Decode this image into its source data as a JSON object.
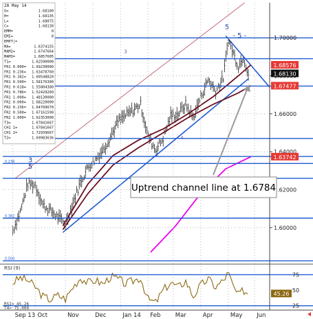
{
  "chart_data": {
    "type": "line",
    "header_date": "28 May 14",
    "ylim": [
      1.5815,
      1.7185
    ],
    "y_ticks": [
      1.6,
      1.62,
      1.64,
      1.66,
      1.68,
      1.7
    ],
    "y_tick_labels": [
      "1.60000",
      "1.62000",
      "1.64000",
      "1.66000",
      "1.68000",
      "1.70000"
    ],
    "x_month_labels": [
      "Sep 13",
      "Oct",
      "Nov",
      "Dec",
      "Jan 14",
      "Feb",
      "Mar",
      "Apr",
      "May",
      "Jun"
    ],
    "x_month_positions": [
      0,
      18,
      42,
      64,
      86,
      108,
      128,
      150,
      172,
      193
    ],
    "x_range": [
      -8,
      205
    ],
    "price_tags": [
      {
        "value": 1.6858,
        "label": "1.68576",
        "bg": "#e53935"
      },
      {
        "value": 1.6813,
        "label": "1.68130",
        "bg": "#111111"
      },
      {
        "value": 1.6748,
        "label": "1.67477",
        "bg": "#e53935"
      },
      {
        "value": 1.6374,
        "label": "1.63742",
        "bg": "#e53935"
      }
    ],
    "info_panel": [
      [
        "O=",
        "1.68100"
      ],
      [
        "H=",
        "1.68135"
      ],
      [
        "L=",
        "1.68075"
      ],
      [
        "C=",
        "1.68130"
      ],
      [
        "EMM=",
        "0"
      ],
      [
        "EMI=",
        "0"
      ],
      [
        "EMPT|=",
        ""
      ],
      [
        "MA=",
        "1.6374155"
      ],
      [
        "MAM2=",
        "1.6747664"
      ],
      [
        "MAM3=",
        "1.6857605"
      ],
      [
        "T1=",
        "1.62590000"
      ],
      [
        "FR1 0.000=",
        "1.69230000"
      ],
      [
        "FR1 0.236=",
        "1.63478760"
      ],
      [
        "FR1 0.382=",
        "1.60548820"
      ],
      [
        "FR1 0.500=",
        "1.58176300"
      ],
      [
        "FR1 0.618=",
        "1.55804380"
      ],
      [
        "FR1 0.786=",
        "1.52429260"
      ],
      [
        "FR1 1.000=",
        "1.48130000"
      ],
      [
        "FR2 0.000=",
        "1.68220000"
      ],
      [
        "FR2 0.236=",
        "1.64709670"
      ],
      [
        "FR2 0.500=",
        "1.67161590"
      ],
      [
        "FR2 1.000=",
        "1.62353000"
      ],
      [
        "T3=",
        "1.67841667"
      ],
      [
        "CH1 1=",
        "1.67841667"
      ],
      [
        "CH1 2=",
        "1.72939667"
      ],
      [
        "T2=",
        "1.69983636"
      ]
    ],
    "annotation": "Uptrend channel line at 1.6784",
    "wave_labels": [
      "3",
      "4",
      "5",
      "- 5 -",
      "3",
      "5"
    ],
    "price_series": {
      "name": "GBP/USD",
      "x": [
        0,
        6,
        12,
        18,
        24,
        30,
        36,
        42,
        48,
        54,
        60,
        66,
        72,
        78,
        84,
        90,
        96,
        102,
        108,
        114,
        120,
        126,
        132,
        138,
        144,
        150,
        156,
        162,
        168,
        172,
        176,
        180,
        184,
        188
      ],
      "y": [
        1.5985,
        1.6085,
        1.623,
        1.6225,
        1.612,
        1.609,
        1.6055,
        1.602,
        1.613,
        1.624,
        1.632,
        1.636,
        1.641,
        1.648,
        1.656,
        1.659,
        1.662,
        1.665,
        1.648,
        1.641,
        1.647,
        1.659,
        1.66,
        1.665,
        1.658,
        1.669,
        1.678,
        1.672,
        1.679,
        1.699,
        1.692,
        1.685,
        1.69,
        1.6813
      ]
    },
    "ma_series": [
      {
        "label": "MA",
        "color": "#ee00ee",
        "x": [
          110,
          130,
          150,
          170,
          190
        ],
        "y": [
          1.587,
          1.601,
          1.618,
          1.631,
          1.6374
        ]
      },
      {
        "label": "MAM2",
        "color": "#6b0f1f",
        "x": [
          40,
          60,
          80,
          100,
          120,
          140,
          160,
          180,
          190
        ],
        "y": [
          1.599,
          1.618,
          1.633,
          1.642,
          1.65,
          1.658,
          1.665,
          1.671,
          1.6748
        ]
      },
      {
        "label": "MAM3",
        "color": "#6b0f1f",
        "x": [
          40,
          60,
          80,
          100,
          120,
          140,
          160,
          180,
          190
        ],
        "y": [
          1.601,
          1.623,
          1.638,
          1.646,
          1.652,
          1.66,
          1.669,
          1.68,
          1.6858
        ]
      }
    ],
    "channel_lines": [
      {
        "name": "upper-channel",
        "color": "#c46a7a",
        "x1": 2,
        "y1": 1.626,
        "x2": 188,
        "y2": 1.72
      },
      {
        "name": "uptrend-line",
        "color": "#1f5bd1",
        "x1": 40,
        "y1": 1.5975,
        "x2": 188,
        "y2": 1.6784
      },
      {
        "name": "downtrend-line",
        "color": "#1f5bd1",
        "x1": 170,
        "y1": 1.701,
        "x2": 205,
        "y2": 1.674
      }
    ],
    "horizontal_levels": [
      {
        "value": 1.7,
        "color": "#1f5bd1"
      },
      {
        "value": 1.689,
        "color": "#1f5bd1"
      },
      {
        "value": 1.6746,
        "color": "#1f5bd1"
      },
      {
        "value": 1.647,
        "color": "#1f5bd1"
      },
      {
        "value": 1.6375,
        "color": "#1f5bd1"
      },
      {
        "value": 1.6338,
        "color": "#1f5bd1"
      },
      {
        "value": 1.626,
        "color": "#1f5bd1"
      },
      {
        "value": 1.605,
        "color": "#1f5bd1"
      },
      {
        "value": 1.5825,
        "color": "#1f5bd1"
      }
    ],
    "level_labels": [
      {
        "value": 1.6338,
        "label": "0.236"
      },
      {
        "value": 1.605,
        "label": "0.382"
      },
      {
        "value": 1.5825,
        "label": "0.500"
      }
    ],
    "rsi": {
      "label": "RSI (9)",
      "readout": [
        "RSI=",
        "45.26",
        "T4=",
        "75.000"
      ],
      "ylim": [
        18,
        92
      ],
      "ticks": [
        25,
        50,
        75
      ],
      "current_tag": "45.26",
      "levels": [
        25,
        75
      ],
      "x": [
        0,
        6,
        12,
        18,
        24,
        30,
        36,
        42,
        48,
        54,
        60,
        66,
        72,
        78,
        84,
        90,
        96,
        102,
        108,
        114,
        120,
        126,
        132,
        138,
        144,
        150,
        156,
        162,
        168,
        172,
        176,
        180,
        184,
        188
      ],
      "y": [
        62,
        70,
        66,
        55,
        40,
        35,
        42,
        36,
        55,
        70,
        62,
        66,
        60,
        72,
        68,
        60,
        65,
        70,
        35,
        30,
        50,
        62,
        55,
        65,
        40,
        58,
        68,
        55,
        66,
        78,
        55,
        42,
        50,
        45
      ]
    },
    "colors": {
      "price": "#000000",
      "accent": "#1f5bd1",
      "tag_red": "#e53935",
      "rsi": "#8b6914"
    }
  }
}
